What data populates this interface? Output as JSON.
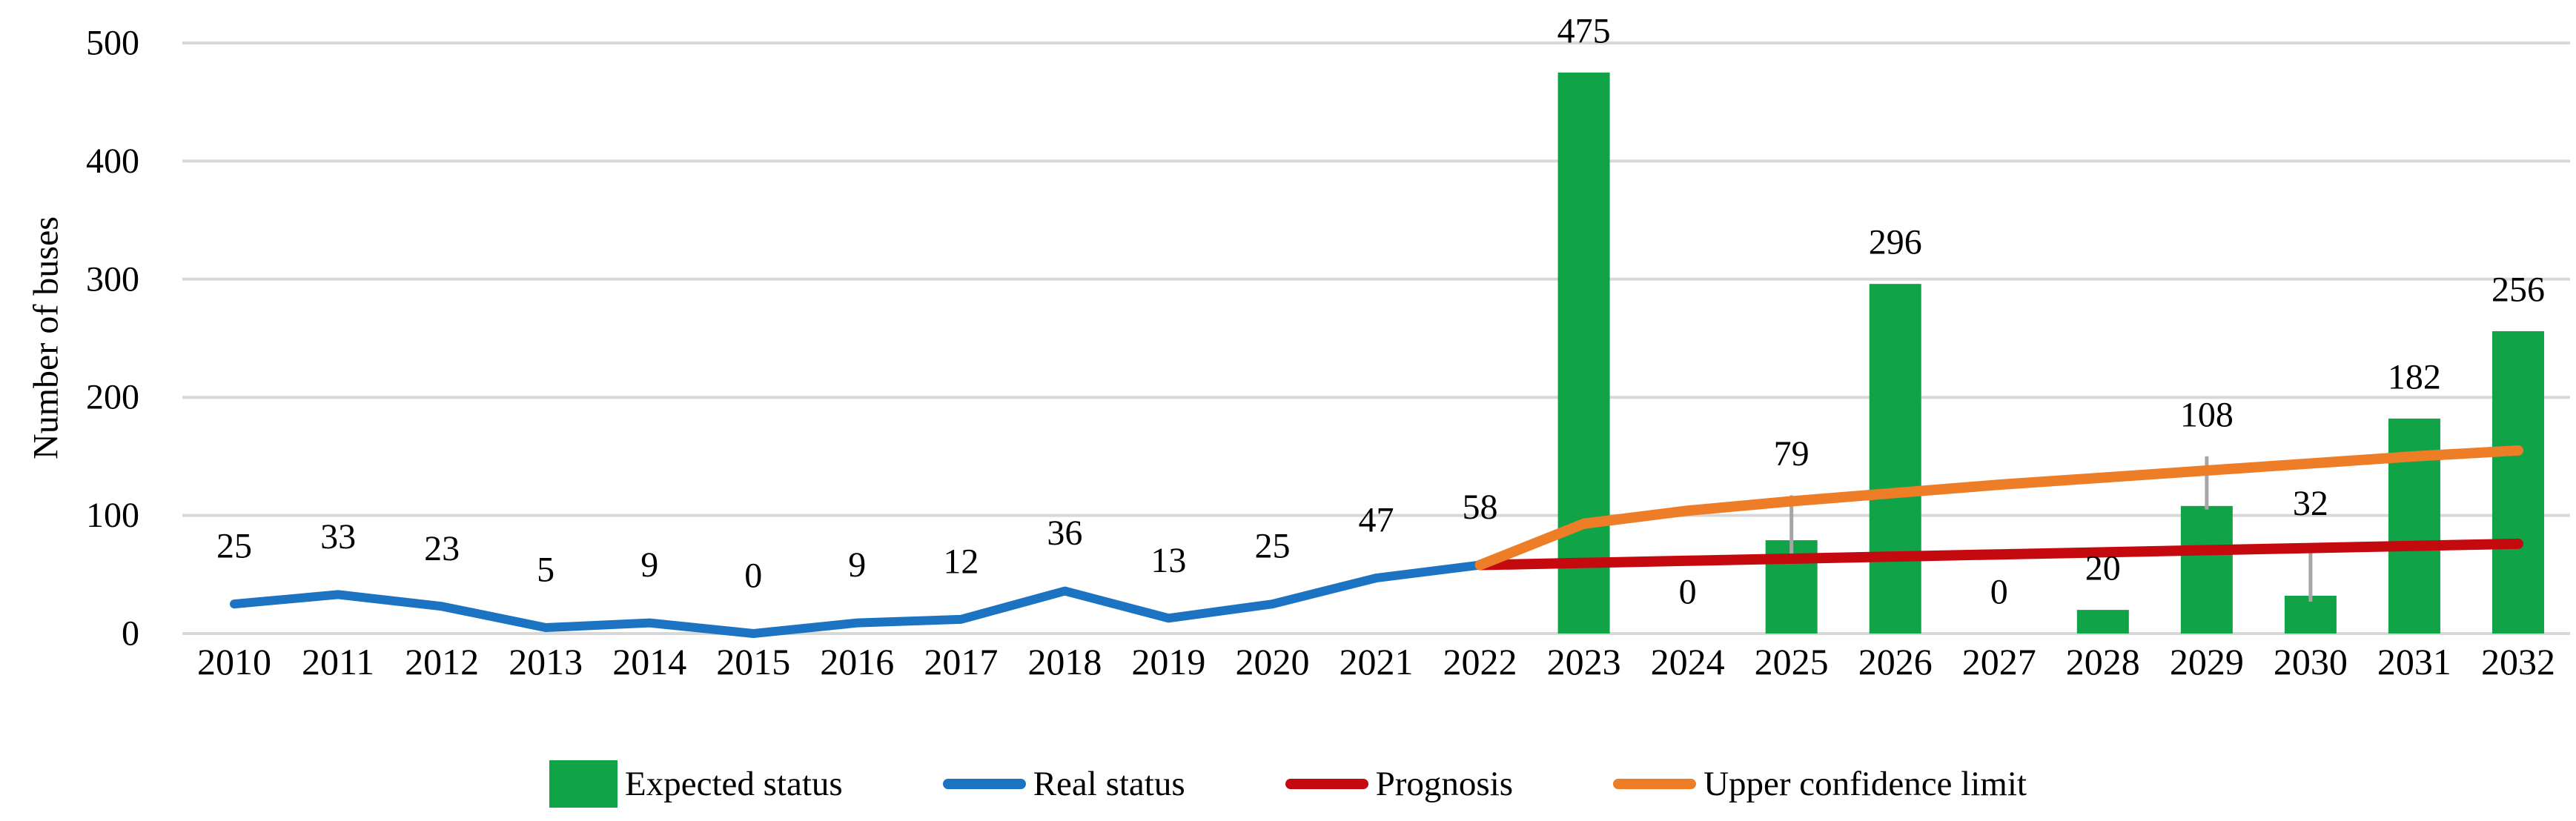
{
  "chart_data": {
    "type": "bar",
    "title": "",
    "xlabel": "",
    "ylabel": "Number of buses",
    "ylim": [
      0,
      500
    ],
    "yticks": [
      0,
      100,
      200,
      300,
      400,
      500
    ],
    "grid": true,
    "legend_position": "bottom",
    "categories": [
      "2010",
      "2011",
      "2012",
      "2013",
      "2014",
      "2015",
      "2016",
      "2017",
      "2018",
      "2019",
      "2020",
      "2021",
      "2022",
      "2023",
      "2024",
      "2025",
      "2026",
      "2027",
      "2028",
      "2029",
      "2030",
      "2031",
      "2032"
    ],
    "series": [
      {
        "name": "Expected status",
        "type": "bar",
        "color": "#10A348",
        "show_labels": true,
        "values": [
          null,
          null,
          null,
          null,
          null,
          null,
          null,
          null,
          null,
          null,
          null,
          null,
          null,
          475,
          0,
          79,
          296,
          0,
          20,
          108,
          32,
          182,
          256
        ],
        "error_bars": [
          {
            "category": "2025",
            "low": 65,
            "high": 117
          },
          {
            "category": "2029",
            "low": 105,
            "high": 150
          },
          {
            "category": "2030",
            "low": 27,
            "high": 75
          }
        ]
      },
      {
        "name": "Real status",
        "type": "line",
        "color": "#1B73C1",
        "show_labels": true,
        "values": [
          25,
          33,
          23,
          5,
          9,
          0,
          9,
          12,
          36,
          13,
          25,
          47,
          58,
          null,
          null,
          null,
          null,
          null,
          null,
          null,
          null,
          null,
          null
        ],
        "error_bars": []
      },
      {
        "name": "Prognosis",
        "type": "line",
        "color": "#C4090F",
        "show_labels": false,
        "values": [
          null,
          null,
          null,
          null,
          null,
          null,
          null,
          null,
          null,
          null,
          null,
          null,
          58,
          59.8,
          61.6,
          63.4,
          65.2,
          67,
          68.8,
          70.6,
          72.4,
          74.2,
          76
        ],
        "error_bars": []
      },
      {
        "name": "Upper confidence limit",
        "type": "line",
        "color": "#EE7D28",
        "show_labels": false,
        "values": [
          null,
          null,
          null,
          null,
          null,
          null,
          null,
          null,
          null,
          null,
          null,
          null,
          58,
          93,
          104,
          112,
          119,
          126,
          132,
          138,
          144,
          150,
          155
        ],
        "error_bars": []
      }
    ],
    "colors": {
      "grid": "#D8D8D8",
      "error_bar": "#A6A6A6",
      "text": "#000000",
      "background": "#FFFFFF"
    }
  }
}
